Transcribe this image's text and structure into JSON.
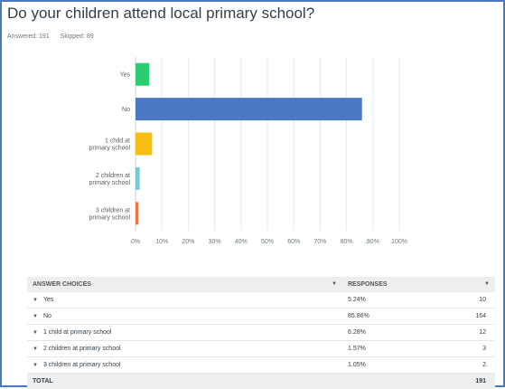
{
  "question": "Do your children attend local primary school?",
  "answered": "Answered: 191",
  "skipped": "Skipped: 89",
  "chart_data": {
    "type": "bar",
    "orientation": "horizontal",
    "categories": [
      [
        "Yes"
      ],
      [
        "No"
      ],
      [
        "1 child at",
        "primary school"
      ],
      [
        "2 children at",
        "primary school"
      ],
      [
        "3 children at",
        "primary school"
      ]
    ],
    "values": [
      5.24,
      85.86,
      6.28,
      1.57,
      1.05
    ],
    "colors": [
      "#2dcc70",
      "#4a78c2",
      "#f7bd13",
      "#74c8d9",
      "#f07341"
    ],
    "xlim": [
      0,
      100
    ],
    "xticks": [
      "0%",
      "10%",
      "20%",
      "30%",
      "40%",
      "50%",
      "60%",
      "70%",
      "80%",
      "90%",
      "100%"
    ],
    "grid": true
  },
  "table": {
    "headers": {
      "choice": "ANSWER CHOICES",
      "responses": "RESPONSES",
      "choice_sort_icon": "caret-down-icon",
      "responses_sort_icon": "caret-down-icon"
    },
    "rows": [
      {
        "choice": "Yes",
        "pct": "5.24%",
        "count": "10"
      },
      {
        "choice": "No",
        "pct": "85.86%",
        "count": "164"
      },
      {
        "choice": "1 child at primary school",
        "pct": "6.28%",
        "count": "12"
      },
      {
        "choice": "2 children at primary school",
        "pct": "1.57%",
        "count": "3"
      },
      {
        "choice": "3 children at primary school",
        "pct": "1.05%",
        "count": "2"
      }
    ],
    "total_label": "TOTAL",
    "total_count": "191"
  }
}
